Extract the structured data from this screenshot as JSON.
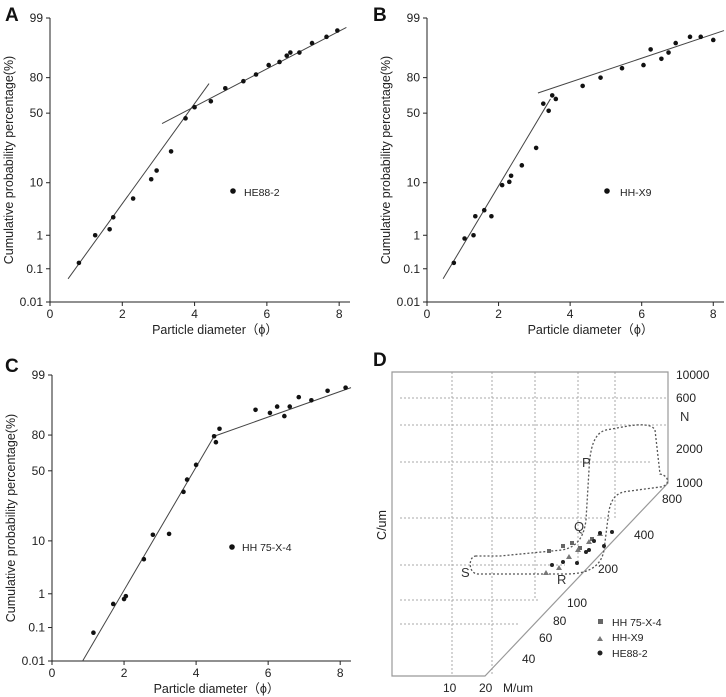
{
  "chart_data": [
    {
      "type": "scatter",
      "panel_label": "A",
      "xlabel": "Particle diameter（ϕ）",
      "ylabel": "Cumulative probability percentage(%)",
      "xlim": [
        0,
        8.3
      ],
      "xticks": [
        0,
        2,
        4,
        6,
        8
      ],
      "yticks": [
        0.01,
        0.1,
        1,
        10,
        50,
        80,
        99
      ],
      "ytick_labels": [
        "0.01",
        "0.1",
        "1",
        "10",
        "50",
        "80",
        "99"
      ],
      "legend": "HE88-2",
      "points": [
        [
          0.8,
          0.15
        ],
        [
          1.25,
          1.0
        ],
        [
          1.65,
          1.3
        ],
        [
          1.75,
          2.2
        ],
        [
          2.3,
          5.0
        ],
        [
          2.8,
          12
        ],
        [
          2.95,
          17
        ],
        [
          3.35,
          28
        ],
        [
          3.75,
          47
        ],
        [
          4.0,
          55
        ],
        [
          4.45,
          60
        ],
        [
          4.85,
          71
        ],
        [
          5.35,
          77
        ],
        [
          5.7,
          81
        ],
        [
          6.05,
          84
        ],
        [
          6.35,
          85
        ],
        [
          6.55,
          87
        ],
        [
          6.65,
          88
        ],
        [
          6.9,
          88
        ],
        [
          7.25,
          91
        ],
        [
          7.65,
          93
        ],
        [
          7.95,
          95
        ]
      ],
      "fit_lines": [
        [
          [
            0.5,
            0.05
          ],
          [
            4.4,
            75
          ]
        ],
        [
          [
            3.1,
            44
          ],
          [
            8.2,
            96
          ]
        ]
      ]
    },
    {
      "type": "scatter",
      "panel_label": "B",
      "xlabel": "Particle diameter（ϕ）",
      "ylabel": "Cumulative probability percentage(%)",
      "xlim": [
        0,
        8.3
      ],
      "xticks": [
        0,
        2,
        4,
        6,
        8
      ],
      "yticks": [
        0.01,
        0.1,
        1,
        10,
        50,
        80,
        99
      ],
      "ytick_labels": [
        "0.01",
        "0.1",
        "1",
        "10",
        "50",
        "80",
        "99"
      ],
      "legend": "HH-X9",
      "points": [
        [
          0.75,
          0.15
        ],
        [
          1.05,
          0.8
        ],
        [
          1.3,
          1.0
        ],
        [
          1.35,
          2.3
        ],
        [
          1.6,
          3.0
        ],
        [
          1.8,
          2.3
        ],
        [
          2.1,
          9
        ],
        [
          2.3,
          10.5
        ],
        [
          2.35,
          14
        ],
        [
          2.65,
          20
        ],
        [
          3.05,
          30
        ],
        [
          3.25,
          58
        ],
        [
          3.4,
          52
        ],
        [
          3.5,
          65
        ],
        [
          3.6,
          62
        ],
        [
          4.35,
          73
        ],
        [
          4.85,
          80
        ],
        [
          5.45,
          83
        ],
        [
          6.05,
          84
        ],
        [
          6.25,
          89
        ],
        [
          6.55,
          86
        ],
        [
          6.75,
          88
        ],
        [
          6.95,
          91
        ],
        [
          7.35,
          93
        ],
        [
          7.65,
          93
        ],
        [
          8.0,
          92
        ]
      ],
      "fit_lines": [
        [
          [
            0.45,
            0.05
          ],
          [
            3.45,
            62
          ]
        ],
        [
          [
            3.1,
            67
          ],
          [
            8.3,
            95
          ]
        ]
      ]
    },
    {
      "type": "scatter",
      "panel_label": "C",
      "xlabel": "Particle diameter（ϕ）",
      "ylabel": "Cumulative probability percentage(%)",
      "xlim": [
        0,
        8.3
      ],
      "xticks": [
        0,
        2,
        4,
        6,
        8
      ],
      "yticks": [
        0.01,
        0.1,
        1,
        10,
        50,
        80,
        99
      ],
      "ytick_labels": [
        "0.01",
        "0.1",
        "1",
        "10",
        "50",
        "80",
        "99"
      ],
      "legend": "HH 75-X-4",
      "points": [
        [
          1.15,
          0.07
        ],
        [
          1.7,
          0.5
        ],
        [
          2.0,
          0.7
        ],
        [
          2.05,
          0.85
        ],
        [
          2.55,
          4.5
        ],
        [
          2.8,
          13.5
        ],
        [
          3.25,
          14
        ],
        [
          3.65,
          38
        ],
        [
          3.75,
          45
        ],
        [
          4.0,
          55
        ],
        [
          4.5,
          79
        ],
        [
          4.55,
          74
        ],
        [
          4.65,
          82
        ],
        [
          5.65,
          88
        ],
        [
          6.05,
          87
        ],
        [
          6.25,
          89
        ],
        [
          6.45,
          86
        ],
        [
          6.6,
          89
        ],
        [
          6.85,
          92
        ],
        [
          7.2,
          91
        ],
        [
          7.65,
          94
        ],
        [
          8.15,
          95
        ]
      ],
      "fit_lines": [
        [
          [
            0.85,
            0.01
          ],
          [
            4.5,
            79
          ]
        ],
        [
          [
            4.5,
            79
          ],
          [
            8.3,
            95
          ]
        ]
      ]
    },
    {
      "type": "scatter",
      "panel_label": "D",
      "xlabel": "M/um",
      "ylabel": "C/um",
      "y_axis_labels": [
        "10000",
        "600",
        "2000",
        "1000",
        "800",
        "400",
        "200",
        "100",
        "80",
        "60",
        "40"
      ],
      "x_axis_labels": [
        "10",
        "20"
      ],
      "zone_labels": [
        "N",
        "P",
        "Q",
        "R",
        "S"
      ],
      "legend_entries": [
        {
          "marker": "square",
          "label": "HH 75-X-4"
        },
        {
          "marker": "triangle",
          "label": "HH-X9"
        },
        {
          "marker": "circle",
          "label": "HE88-2"
        }
      ]
    }
  ]
}
